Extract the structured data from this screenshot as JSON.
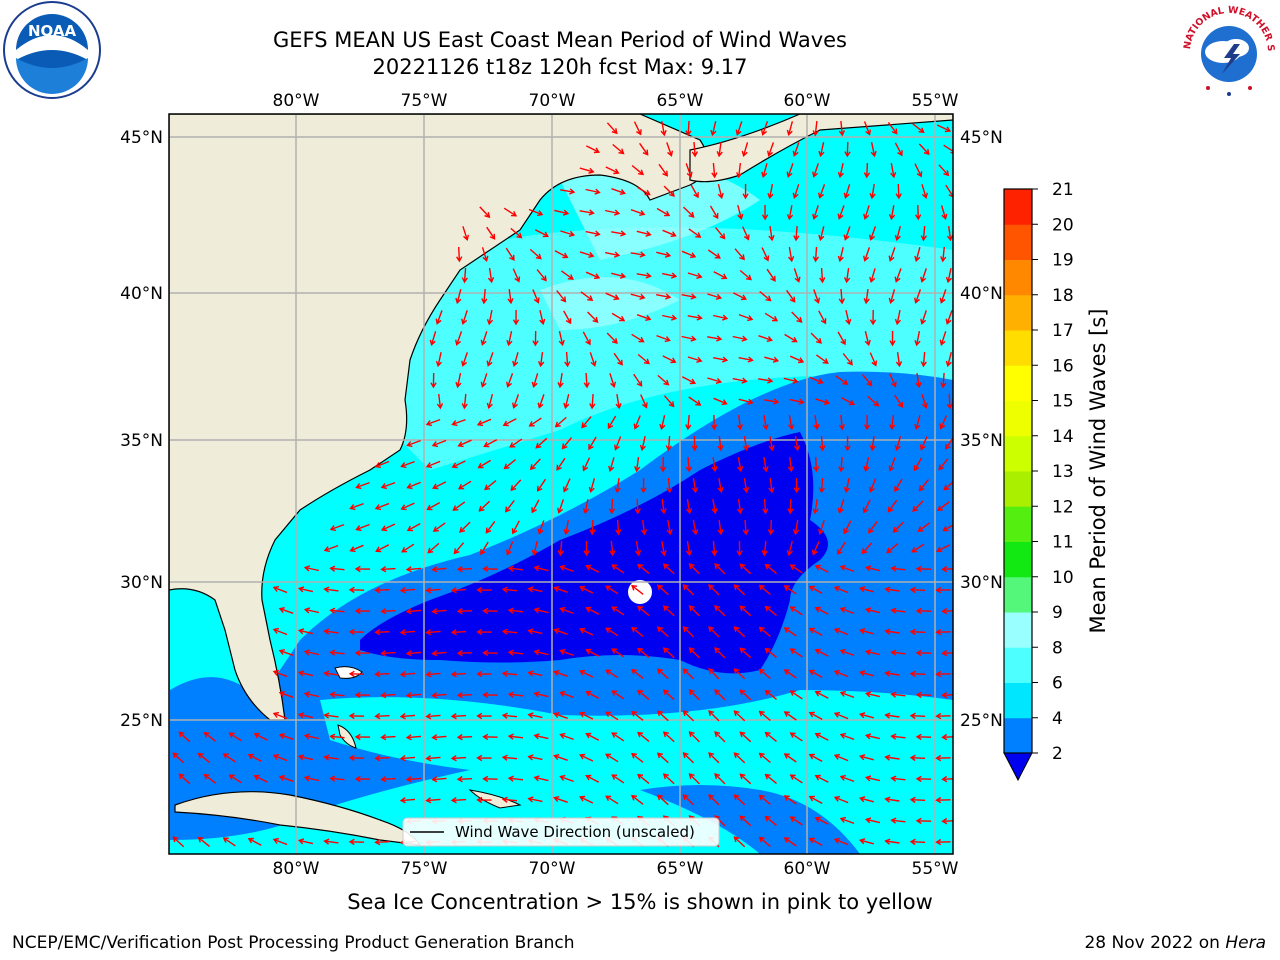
{
  "header": {
    "title_line1": "GEFS MEAN US East Coast Mean Period of Wind Waves",
    "title_line2": "20221126 t18z 120h fcst   Max: 9.17"
  },
  "map": {
    "lon_labels": [
      "80°W",
      "75°W",
      "70°W",
      "65°W",
      "60°W",
      "55°W"
    ],
    "lat_labels": [
      "45°N",
      "40°N",
      "35°N",
      "30°N",
      "25°N"
    ],
    "legend_label": "Wind Wave Direction (unscaled)",
    "colors": {
      "land": "#efedda",
      "ocean_light": "#00ffff",
      "ocean_mid": "#4dffff",
      "ocean_pale": "#99ffff",
      "deep": "#0080ff",
      "deepest": "#0000f0",
      "arrow": "#ff0000",
      "grid": "#b0b0b0"
    }
  },
  "colorbar": {
    "label": "Mean Period of Wind Waves [s]",
    "ticks": [
      "2",
      "4",
      "6",
      "8",
      "9",
      "10",
      "11",
      "12",
      "13",
      "14",
      "15",
      "16",
      "17",
      "18",
      "19",
      "20",
      "21"
    ],
    "colors": [
      "#0080ff",
      "#00e6ff",
      "#4dffff",
      "#99ffff",
      "#55f77a",
      "#12e812",
      "#55ee11",
      "#aaee00",
      "#ccff00",
      "#eeff00",
      "#ffff00",
      "#ffdd00",
      "#ffb000",
      "#ff8800",
      "#ff5500",
      "#ff2200",
      "#ff0000"
    ],
    "under_color": "#0000f0"
  },
  "logos": {
    "noaa_text": "NOAA",
    "nws_text": "NATIONAL WEATHER SERVICE"
  },
  "footer": {
    "note": "Sea Ice Concentration > 15% is shown in pink to yellow",
    "left": "NCEP/EMC/Verification Post Processing Product Generation Branch",
    "right_date": "28 Nov 2022 on",
    "right_host": "Hera"
  }
}
